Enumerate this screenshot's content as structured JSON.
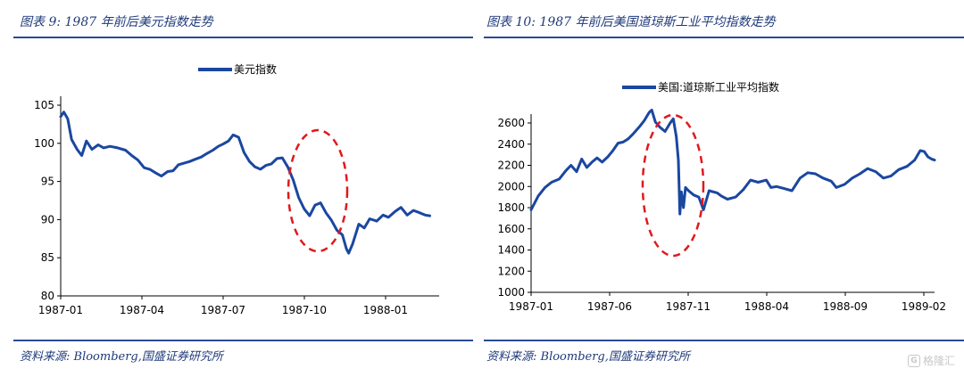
{
  "left": {
    "title": "图表 9:  1987 年前后美元指数走势",
    "source": "资料来源:  Bloomberg,国盛证券研究所"
  },
  "right": {
    "title": "图表 10:  1987 年前后美国道琼斯工业平均指数走势",
    "source": "资料来源:  Bloomberg,国盛证券研究所"
  },
  "watermark": {
    "icon": "G",
    "text": "格隆汇"
  },
  "colors": {
    "line": "#1a47a0",
    "annotation": "#e0191e",
    "title": "#1f3a7a"
  },
  "chart_data": [
    {
      "type": "line",
      "legend": "美元指数",
      "legend_position": "top-center",
      "grid": false,
      "x_tick_labels": [
        "1987-01",
        "1987-04",
        "1987-07",
        "1987-10",
        "1988-01"
      ],
      "x_range": [
        "1987-01-01",
        "1988-04-30"
      ],
      "y_ticks": [
        80,
        85,
        90,
        95,
        100,
        105
      ],
      "ylim": [
        80,
        105
      ],
      "annotation": {
        "shape": "dashed-ellipse",
        "around": [
          "1987-09-25",
          "1987-12-01"
        ]
      },
      "series": [
        {
          "name": "美元指数",
          "points": [
            [
              "1987-01-01",
              103.5
            ],
            [
              "1987-01-05",
              104.1
            ],
            [
              "1987-01-10",
              103.2
            ],
            [
              "1987-01-15",
              100.5
            ],
            [
              "1987-01-22",
              99.2
            ],
            [
              "1987-01-28",
              98.4
            ],
            [
              "1987-02-03",
              100.3
            ],
            [
              "1987-02-10",
              99.2
            ],
            [
              "1987-02-18",
              99.8
            ],
            [
              "1987-02-25",
              99.4
            ],
            [
              "1987-03-05",
              99.6
            ],
            [
              "1987-03-15",
              99.4
            ],
            [
              "1987-03-25",
              99.1
            ],
            [
              "1987-04-02",
              98.4
            ],
            [
              "1987-04-10",
              97.8
            ],
            [
              "1987-04-18",
              96.8
            ],
            [
              "1987-04-25",
              96.6
            ],
            [
              "1987-05-03",
              96.1
            ],
            [
              "1987-05-10",
              95.7
            ],
            [
              "1987-05-18",
              96.3
            ],
            [
              "1987-05-25",
              96.4
            ],
            [
              "1987-06-01",
              97.2
            ],
            [
              "1987-06-08",
              97.4
            ],
            [
              "1987-06-15",
              97.6
            ],
            [
              "1987-06-22",
              97.9
            ],
            [
              "1987-06-30",
              98.2
            ],
            [
              "1987-07-08",
              98.7
            ],
            [
              "1987-07-15",
              99.1
            ],
            [
              "1987-07-22",
              99.6
            ],
            [
              "1987-07-28",
              99.9
            ],
            [
              "1987-08-04",
              100.3
            ],
            [
              "1987-08-10",
              101.1
            ],
            [
              "1987-08-17",
              100.8
            ],
            [
              "1987-08-24",
              98.8
            ],
            [
              "1987-08-31",
              97.6
            ],
            [
              "1987-09-07",
              96.9
            ],
            [
              "1987-09-14",
              96.6
            ],
            [
              "1987-09-21",
              97.1
            ],
            [
              "1987-09-28",
              97.3
            ],
            [
              "1987-10-05",
              98.0
            ],
            [
              "1987-10-12",
              98.1
            ],
            [
              "1987-10-19",
              96.9
            ],
            [
              "1987-10-26",
              95.2
            ],
            [
              "1987-11-02",
              92.9
            ],
            [
              "1987-11-09",
              91.4
            ],
            [
              "1987-11-16",
              90.5
            ],
            [
              "1987-11-23",
              91.9
            ],
            [
              "1987-11-30",
              92.2
            ],
            [
              "1987-12-07",
              90.9
            ],
            [
              "1987-12-14",
              89.9
            ],
            [
              "1987-12-21",
              88.6
            ],
            [
              "1987-12-28",
              88.0
            ],
            [
              "1988-01-02",
              86.2
            ],
            [
              "1988-01-05",
              85.6
            ],
            [
              "1988-01-10",
              86.8
            ],
            [
              "1988-01-18",
              89.4
            ],
            [
              "1988-01-25",
              88.9
            ],
            [
              "1988-02-01",
              90.1
            ],
            [
              "1988-02-10",
              89.8
            ],
            [
              "1988-02-18",
              90.6
            ],
            [
              "1988-02-25",
              90.3
            ],
            [
              "1988-03-05",
              91.1
            ],
            [
              "1988-03-12",
              91.6
            ],
            [
              "1988-03-20",
              90.6
            ],
            [
              "1988-03-28",
              91.2
            ],
            [
              "1988-04-05",
              90.9
            ],
            [
              "1988-04-12",
              90.6
            ],
            [
              "1988-04-18",
              90.5
            ]
          ]
        }
      ]
    },
    {
      "type": "line",
      "legend": "美国:道琼斯工业平均指数",
      "legend_position": "top-center",
      "grid": false,
      "x_tick_labels": [
        "1987-01",
        "1987-06",
        "1987-11",
        "1988-04",
        "1988-09",
        "1989-02"
      ],
      "x_range": [
        "1987-01-01",
        "1989-02-28"
      ],
      "y_ticks": [
        1000,
        1200,
        1400,
        1600,
        1800,
        2000,
        2200,
        2400,
        2600
      ],
      "ylim": [
        1000,
        2600
      ],
      "annotation": {
        "shape": "dashed-ellipse",
        "around": [
          "1987-08-15",
          "1987-10-31"
        ]
      },
      "series": [
        {
          "name": "美国:道琼斯工业平均指数",
          "points": [
            [
              "1987-01-01",
              1780
            ],
            [
              "1987-01-15",
              1910
            ],
            [
              "1987-01-28",
              1990
            ],
            [
              "1987-02-10",
              2040
            ],
            [
              "1987-02-25",
              2070
            ],
            [
              "1987-03-10",
              2150
            ],
            [
              "1987-03-20",
              2200
            ],
            [
              "1987-03-31",
              2140
            ],
            [
              "1987-04-10",
              2260
            ],
            [
              "1987-04-20",
              2180
            ],
            [
              "1987-04-30",
              2230
            ],
            [
              "1987-05-10",
              2270
            ],
            [
              "1987-05-20",
              2230
            ],
            [
              "1987-05-31",
              2280
            ],
            [
              "1987-06-10",
              2340
            ],
            [
              "1987-06-20",
              2410
            ],
            [
              "1987-06-30",
              2420
            ],
            [
              "1987-07-10",
              2450
            ],
            [
              "1987-07-20",
              2500
            ],
            [
              "1987-07-31",
              2560
            ],
            [
              "1987-08-10",
              2620
            ],
            [
              "1987-08-20",
              2700
            ],
            [
              "1987-08-25",
              2722
            ],
            [
              "1987-09-01",
              2610
            ],
            [
              "1987-09-10",
              2560
            ],
            [
              "1987-09-20",
              2520
            ],
            [
              "1987-09-30",
              2600
            ],
            [
              "1987-10-06",
              2640
            ],
            [
              "1987-10-12",
              2470
            ],
            [
              "1987-10-16",
              2250
            ],
            [
              "1987-10-19",
              1740
            ],
            [
              "1987-10-22",
              1950
            ],
            [
              "1987-10-26",
              1800
            ],
            [
              "1987-10-30",
              1990
            ],
            [
              "1987-11-05",
              1960
            ],
            [
              "1987-11-15",
              1920
            ],
            [
              "1987-11-25",
              1900
            ],
            [
              "1987-12-04",
              1780
            ],
            [
              "1987-12-15",
              1960
            ],
            [
              "1987-12-31",
              1940
            ],
            [
              "1988-01-08",
              1910
            ],
            [
              "1988-01-20",
              1880
            ],
            [
              "1988-02-05",
              1900
            ],
            [
              "1988-02-20",
              1970
            ],
            [
              "1988-03-05",
              2060
            ],
            [
              "1988-03-20",
              2040
            ],
            [
              "1988-04-05",
              2060
            ],
            [
              "1988-04-14",
              1990
            ],
            [
              "1988-04-25",
              2000
            ],
            [
              "1988-05-10",
              1980
            ],
            [
              "1988-05-25",
              1960
            ],
            [
              "1988-06-10",
              2080
            ],
            [
              "1988-06-25",
              2130
            ],
            [
              "1988-07-10",
              2120
            ],
            [
              "1988-07-25",
              2080
            ],
            [
              "1988-08-10",
              2050
            ],
            [
              "1988-08-20",
              1990
            ],
            [
              "1988-09-05",
              2020
            ],
            [
              "1988-09-20",
              2080
            ],
            [
              "1988-10-05",
              2120
            ],
            [
              "1988-10-20",
              2170
            ],
            [
              "1988-11-05",
              2140
            ],
            [
              "1988-11-20",
              2080
            ],
            [
              "1988-12-05",
              2100
            ],
            [
              "1988-12-20",
              2160
            ],
            [
              "1989-01-05",
              2190
            ],
            [
              "1989-01-20",
              2250
            ],
            [
              "1989-01-31",
              2340
            ],
            [
              "1989-02-08",
              2330
            ],
            [
              "1989-02-15",
              2280
            ],
            [
              "1989-02-22",
              2260
            ],
            [
              "1989-02-28",
              2250
            ]
          ]
        }
      ]
    }
  ]
}
